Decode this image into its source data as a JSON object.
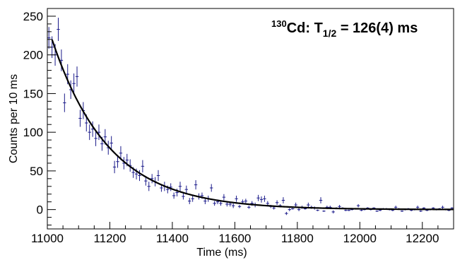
{
  "chart_data": {
    "type": "scatter",
    "title": "Cd: T = 126(4) ms",
    "title_parts": {
      "mass_number": "130",
      "element": "Cd: T",
      "subscript": "1/2",
      "value": " = 126(4) ms"
    },
    "xlabel": "Time (ms)",
    "ylabel": "Counts per 10 ms",
    "xlim": [
      11000,
      12300
    ],
    "ylim": [
      -25,
      260
    ],
    "x_ticks": [
      11000,
      11200,
      11400,
      11600,
      11800,
      12000,
      12200
    ],
    "y_ticks": [
      0,
      50,
      100,
      150,
      200,
      250
    ],
    "grid": false,
    "legend": "none",
    "colors": {
      "data": "#1a1a8a",
      "fit": "#000000",
      "axes": "#000000"
    },
    "fit": {
      "label": "exponential decay fit",
      "half_life_ms": 126,
      "half_life_uncertainty_ms": 4,
      "amplitude": 220,
      "x0": 11015,
      "background": 0,
      "x_range": [
        11015,
        12300
      ]
    },
    "series": [
      {
        "x": [
          11005,
          11015,
          11025,
          11035,
          11045,
          11055,
          11065,
          11075,
          11085,
          11095,
          11105,
          11115,
          11125,
          11135,
          11145,
          11155,
          11165,
          11175,
          11185,
          11195,
          11205,
          11215,
          11225,
          11235,
          11245,
          11255,
          11265,
          11275,
          11285,
          11295,
          11305,
          11315,
          11325,
          11335,
          11345,
          11355,
          11365,
          11375,
          11385,
          11395,
          11405,
          11415,
          11425,
          11435,
          11445,
          11455,
          11465,
          11475,
          11485,
          11495,
          11505,
          11515,
          11525,
          11535,
          11545,
          11555,
          11565,
          11575,
          11585,
          11595,
          11605,
          11615,
          11625,
          11635,
          11645,
          11655,
          11665,
          11675,
          11685,
          11695,
          11705,
          11715,
          11725,
          11735,
          11745,
          11755,
          11765,
          11775,
          11785,
          11795,
          11805,
          11815,
          11825,
          11835,
          11845,
          11855,
          11865,
          11875,
          11885,
          11895,
          11905,
          11915,
          11925,
          11935,
          11945,
          11955,
          11965,
          11975,
          11985,
          11995,
          12005,
          12015,
          12025,
          12035,
          12045,
          12055,
          12065,
          12075,
          12085,
          12095,
          12105,
          12115,
          12125,
          12135,
          12145,
          12155,
          12165,
          12175,
          12185,
          12195,
          12205,
          12215,
          12225,
          12235,
          12245,
          12255,
          12265,
          12275,
          12285,
          12295
        ],
        "y": [
          222,
          210,
          200,
          233,
          193,
          138,
          175,
          155,
          163,
          172,
          118,
          128,
          112,
          100,
          104,
          92,
          100,
          85,
          94,
          80,
          86,
          55,
          62,
          73,
          60,
          64,
          57,
          48,
          46,
          44,
          56,
          37,
          30,
          40,
          36,
          44,
          28,
          30,
          26,
          29,
          18,
          22,
          30,
          17,
          26,
          11,
          14,
          32,
          17,
          18,
          11,
          14,
          28,
          8,
          10,
          8,
          16,
          7,
          7,
          5,
          14,
          4,
          10,
          11,
          3,
          8,
          6,
          15,
          13,
          14,
          8,
          4,
          2,
          9,
          5,
          12,
          -5,
          0,
          1,
          6,
          0,
          3,
          1,
          6,
          3,
          2,
          -1,
          12,
          -2,
          3,
          3,
          -3,
          2,
          4,
          2,
          -1,
          -1,
          0,
          1,
          5,
          -1,
          0,
          2,
          0,
          2,
          -2,
          -1,
          1,
          1,
          0,
          -1,
          3,
          1,
          -2,
          0,
          1,
          -1,
          0,
          3,
          -2,
          2,
          -1,
          0,
          2,
          0,
          1,
          3,
          0,
          -1,
          2
        ],
        "err": [
          14,
          14,
          14,
          15,
          14,
          12,
          13,
          12,
          13,
          13,
          11,
          11,
          11,
          10,
          10,
          10,
          10,
          9,
          10,
          9,
          9,
          8,
          8,
          9,
          8,
          8,
          8,
          7,
          7,
          7,
          8,
          6,
          6,
          6,
          6,
          7,
          5,
          6,
          5,
          5,
          4,
          5,
          6,
          4,
          5,
          4,
          4,
          6,
          4,
          4,
          4,
          4,
          5,
          3,
          3,
          3,
          4,
          3,
          3,
          3,
          4,
          2,
          3,
          3,
          2,
          3,
          3,
          4,
          4,
          4,
          3,
          2,
          2,
          3,
          2,
          4,
          2,
          2,
          1,
          3,
          2,
          2,
          1,
          3,
          2,
          2,
          1,
          4,
          1,
          2,
          2,
          2,
          1,
          2,
          1,
          1,
          1,
          1,
          1,
          2,
          1,
          1,
          1,
          1,
          1,
          1,
          1,
          1,
          1,
          1,
          1,
          2,
          1,
          1,
          1,
          1,
          1,
          1,
          2,
          1,
          1,
          1,
          1,
          1,
          1,
          1,
          2,
          1,
          1,
          1
        ]
      }
    ]
  }
}
